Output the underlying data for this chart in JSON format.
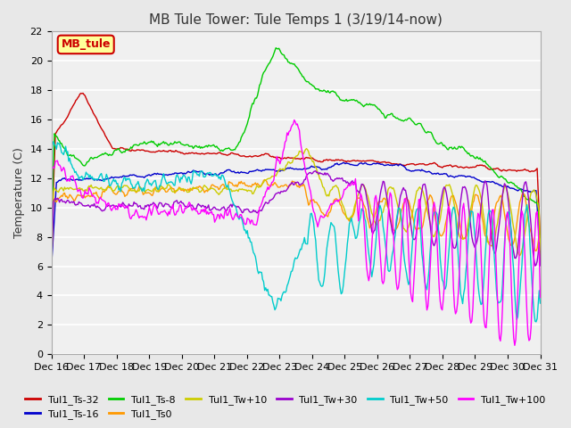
{
  "title": "MB Tule Tower: Tule Temps 1 (3/19/14-now)",
  "ylabel": "Temperature (C)",
  "ylim": [
    0,
    22
  ],
  "yticks": [
    0,
    2,
    4,
    6,
    8,
    10,
    12,
    14,
    16,
    18,
    20,
    22
  ],
  "xtick_labels": [
    "Dec 16",
    "Dec 17",
    "Dec 18",
    "Dec 19",
    "Dec 20",
    "Dec 21",
    "Dec 22",
    "Dec 23",
    "Dec 24",
    "Dec 25",
    "Dec 26",
    "Dec 27",
    "Dec 28",
    "Dec 29",
    "Dec 30",
    "Dec 31"
  ],
  "n_points": 480,
  "series_colors": {
    "Tul1_Ts-32": "#cc0000",
    "Tul1_Ts-16": "#0000cc",
    "Tul1_Ts-8": "#00cc00",
    "Tul1_Ts0": "#ff9900",
    "Tul1_Tw+10": "#cccc00",
    "Tul1_Tw+30": "#9900cc",
    "Tul1_Tw+50": "#00cccc",
    "Tul1_Tw+100": "#ff00ff"
  },
  "bg_color": "#e8e8e8",
  "plot_bg": "#f0f0f0",
  "grid_color": "#ffffff",
  "legend_box_color": "#ffff99",
  "legend_box_edge": "#cc0000",
  "legend_text": "MB_tule",
  "title_fontsize": 11,
  "label_fontsize": 9,
  "tick_fontsize": 8
}
